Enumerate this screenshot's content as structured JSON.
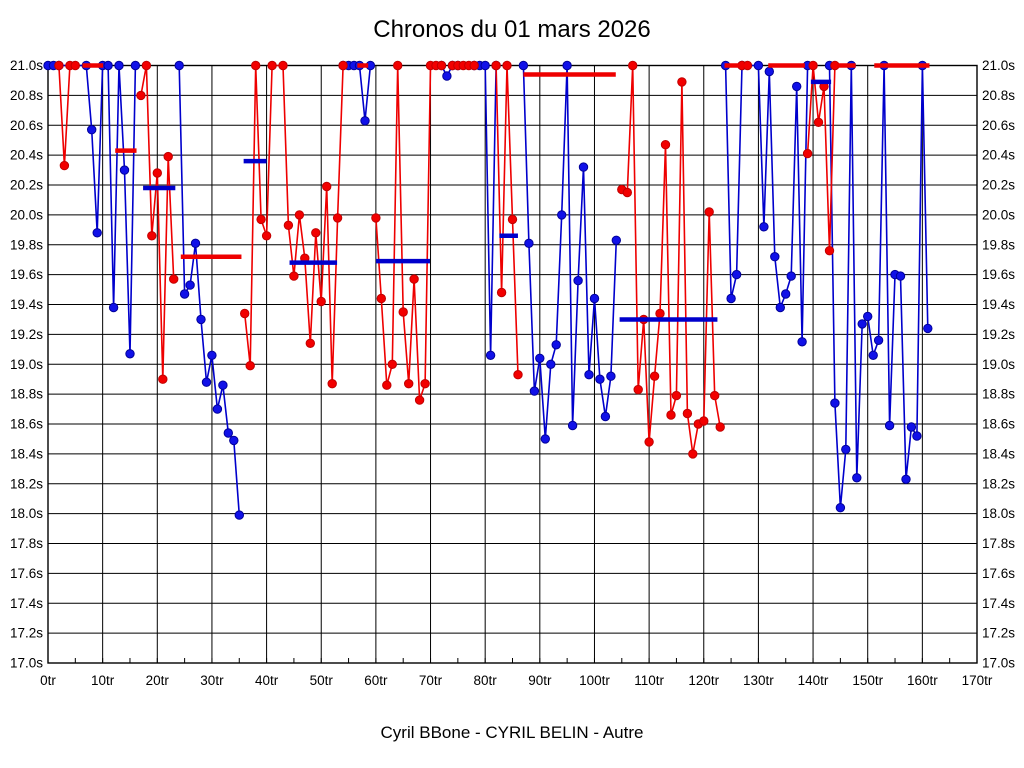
{
  "page": {
    "title": "Chronos du 01 mars 2026",
    "footer": "Cyril BBone - CYRIL BELIN - Autre"
  },
  "chart_data": {
    "type": "line",
    "title": "Chronos du 01 mars 2026",
    "subtitle": "Cyril BBone - CYRIL BELIN - Autre",
    "grid": true,
    "legend_position": "none",
    "x_axis": {
      "min": 0,
      "max": 170,
      "major_step": 10,
      "minor_step": 5,
      "tick_suffix": "tr",
      "tick_labels": [
        "0tr",
        "10tr",
        "20tr",
        "30tr",
        "40tr",
        "50tr",
        "60tr",
        "70tr",
        "80tr",
        "90tr",
        "100tr",
        "110tr",
        "120tr",
        "130tr",
        "140tr",
        "150tr",
        "160tr",
        "170tr"
      ]
    },
    "y_axis": {
      "min": 17.0,
      "max": 21.0,
      "step": 0.2,
      "tick_suffix": "s",
      "labels_both_sides": true,
      "clip_cap": 21.0,
      "tick_labels": [
        "21.0s",
        "20.8s",
        "20.6s",
        "20.4s",
        "20.2s",
        "20.0s",
        "19.8s",
        "19.6s",
        "19.4s",
        "19.2s",
        "19.0s",
        "18.8s",
        "18.6s",
        "18.4s",
        "18.2s",
        "18.0s",
        "17.8s",
        "17.6s",
        "17.4s",
        "17.2s",
        "17.0s"
      ]
    },
    "colors": {
      "blue_line": "#0000cc",
      "blue_fill": "#1111e8",
      "blue_edge": "#000099",
      "red_line": "#ee0000",
      "red_fill": "#f20000",
      "red_edge": "#c00000",
      "grid": "#000000"
    },
    "series": [
      {
        "name": "blue",
        "color": "#0000cc",
        "runs": [
          [
            [
              0,
              21.0
            ],
            [
              1,
              21.0
            ],
            [
              2,
              21.0
            ],
            [
              7,
              21.0
            ],
            [
              8,
              20.57
            ],
            [
              9,
              19.88
            ],
            [
              10,
              21.0
            ],
            [
              11,
              21.0
            ],
            [
              12,
              19.38
            ],
            [
              13,
              21.0
            ],
            [
              14,
              20.3
            ],
            [
              15,
              19.07
            ],
            [
              16,
              21.0
            ]
          ],
          [
            [
              24,
              21.0
            ],
            [
              25,
              19.47
            ],
            [
              26,
              19.53
            ],
            [
              27,
              19.81
            ],
            [
              28,
              19.3
            ],
            [
              29,
              18.88
            ],
            [
              30,
              19.06
            ],
            [
              31,
              18.7
            ],
            [
              32,
              18.86
            ],
            [
              33,
              18.54
            ],
            [
              34,
              18.49
            ],
            [
              35,
              17.99
            ]
          ],
          [
            [
              54,
              21.0
            ],
            [
              55,
              21.0
            ],
            [
              56,
              21.0
            ],
            [
              57,
              21.0
            ],
            [
              58,
              20.63
            ],
            [
              59,
              21.0
            ]
          ],
          [
            [
              72,
              21.0
            ],
            [
              73,
              20.93
            ],
            [
              74,
              21.0
            ],
            [
              75,
              21.0
            ]
          ],
          [
            [
              78,
              21.0
            ],
            [
              79,
              21.0
            ],
            [
              80,
              21.0
            ],
            [
              81,
              19.06
            ],
            [
              82,
              21.0
            ]
          ],
          [
            [
              87,
              21.0
            ],
            [
              88,
              19.81
            ],
            [
              89,
              18.82
            ],
            [
              90,
              19.04
            ],
            [
              91,
              18.5
            ],
            [
              92,
              19.0
            ],
            [
              93,
              19.13
            ],
            [
              94,
              20.0
            ],
            [
              95,
              21.0
            ],
            [
              96,
              18.59
            ],
            [
              97,
              19.56
            ],
            [
              98,
              20.32
            ],
            [
              99,
              18.93
            ],
            [
              100,
              19.44
            ],
            [
              101,
              18.9
            ],
            [
              102,
              18.65
            ],
            [
              103,
              18.92
            ],
            [
              104,
              19.83
            ]
          ],
          [
            [
              124,
              21.0
            ],
            [
              125,
              19.44
            ],
            [
              126,
              19.6
            ],
            [
              127,
              21.0
            ],
            [
              130,
              21.0
            ],
            [
              131,
              19.92
            ],
            [
              132,
              20.96
            ],
            [
              133,
              19.72
            ],
            [
              134,
              19.38
            ],
            [
              135,
              19.47
            ],
            [
              136,
              19.59
            ],
            [
              137,
              20.86
            ],
            [
              138,
              19.15
            ],
            [
              139,
              21.0
            ]
          ],
          [
            [
              143,
              21.0
            ],
            [
              144,
              18.74
            ],
            [
              145,
              18.04
            ],
            [
              146,
              18.43
            ],
            [
              147,
              21.0
            ],
            [
              148,
              18.24
            ],
            [
              149,
              19.27
            ],
            [
              150,
              19.32
            ],
            [
              151,
              19.06
            ],
            [
              152,
              19.16
            ],
            [
              153,
              21.0
            ],
            [
              154,
              18.59
            ],
            [
              155,
              19.6
            ],
            [
              156,
              19.59
            ],
            [
              157,
              18.23
            ],
            [
              158,
              18.58
            ],
            [
              159,
              18.52
            ],
            [
              160,
              21.0
            ],
            [
              161,
              19.24
            ]
          ]
        ]
      },
      {
        "name": "red",
        "color": "#ee0000",
        "runs": [
          [
            [
              2,
              21.0
            ],
            [
              3,
              20.33
            ],
            [
              4,
              21.0
            ],
            [
              5,
              21.0
            ]
          ],
          [
            [
              17,
              20.8
            ],
            [
              18,
              21.0
            ],
            [
              19,
              19.86
            ],
            [
              20,
              20.28
            ],
            [
              21,
              18.9
            ],
            [
              22,
              20.39
            ],
            [
              23,
              19.57
            ]
          ],
          [
            [
              36,
              19.34
            ],
            [
              37,
              18.99
            ],
            [
              38,
              21.0
            ],
            [
              39,
              19.97
            ],
            [
              40,
              19.86
            ],
            [
              41,
              21.0
            ],
            [
              43,
              21.0
            ],
            [
              44,
              19.93
            ],
            [
              45,
              19.59
            ],
            [
              46,
              20.0
            ],
            [
              47,
              19.71
            ],
            [
              48,
              19.14
            ],
            [
              49,
              19.88
            ],
            [
              50,
              19.42
            ],
            [
              51,
              20.19
            ],
            [
              52,
              18.87
            ],
            [
              53,
              19.98
            ],
            [
              54,
              21.0
            ]
          ],
          [
            [
              60,
              19.98
            ],
            [
              61,
              19.44
            ],
            [
              62,
              18.86
            ],
            [
              63,
              19.0
            ],
            [
              64,
              21.0
            ],
            [
              65,
              19.35
            ],
            [
              66,
              18.87
            ],
            [
              67,
              19.57
            ],
            [
              68,
              18.76
            ],
            [
              69,
              18.87
            ],
            [
              70,
              21.0
            ],
            [
              71,
              21.0
            ],
            [
              72,
              21.0
            ]
          ],
          [
            [
              74,
              21.0
            ],
            [
              75,
              21.0
            ],
            [
              76,
              21.0
            ],
            [
              77,
              21.0
            ],
            [
              78,
              21.0
            ]
          ],
          [
            [
              82,
              21.0
            ],
            [
              83,
              19.48
            ],
            [
              84,
              21.0
            ],
            [
              85,
              19.97
            ],
            [
              86,
              18.93
            ]
          ],
          [
            [
              105,
              20.17
            ],
            [
              106,
              20.15
            ],
            [
              107,
              21.0
            ],
            [
              108,
              18.83
            ],
            [
              109,
              19.3
            ],
            [
              110,
              18.48
            ],
            [
              111,
              18.92
            ],
            [
              112,
              19.34
            ],
            [
              113,
              20.47
            ],
            [
              114,
              18.66
            ],
            [
              115,
              18.79
            ],
            [
              116,
              20.89
            ],
            [
              117,
              18.67
            ],
            [
              118,
              18.4
            ],
            [
              119,
              18.6
            ],
            [
              120,
              18.62
            ],
            [
              121,
              20.02
            ],
            [
              122,
              18.79
            ],
            [
              123,
              18.58
            ]
          ],
          [
            [
              127,
              21.0
            ],
            [
              128,
              21.0
            ]
          ],
          [
            [
              139,
              20.41
            ],
            [
              140,
              21.0
            ],
            [
              141,
              20.62
            ],
            [
              142,
              20.86
            ],
            [
              143,
              19.76
            ],
            [
              144,
              21.0
            ]
          ]
        ]
      }
    ],
    "average_segments": [
      {
        "series": "red",
        "x1": 6.3,
        "x2": 10.1,
        "y": 21.0
      },
      {
        "series": "red",
        "x1": 12.3,
        "x2": 16.2,
        "y": 20.43
      },
      {
        "series": "blue",
        "x1": 17.4,
        "x2": 23.3,
        "y": 20.18
      },
      {
        "series": "red",
        "x1": 24.3,
        "x2": 35.4,
        "y": 19.72
      },
      {
        "series": "blue",
        "x1": 35.8,
        "x2": 40.0,
        "y": 20.36
      },
      {
        "series": "blue",
        "x1": 44.2,
        "x2": 52.9,
        "y": 19.68
      },
      {
        "series": "red",
        "x1": 56.6,
        "x2": 58.6,
        "y": 21.0
      },
      {
        "series": "blue",
        "x1": 60.0,
        "x2": 69.9,
        "y": 19.69
      },
      {
        "series": "blue",
        "x1": 82.6,
        "x2": 86.0,
        "y": 19.86
      },
      {
        "series": "red",
        "x1": 87.0,
        "x2": 103.9,
        "y": 20.94
      },
      {
        "series": "blue",
        "x1": 104.6,
        "x2": 122.5,
        "y": 19.3
      },
      {
        "series": "red",
        "x1": 123.8,
        "x2": 127.4,
        "y": 21.0
      },
      {
        "series": "red",
        "x1": 131.8,
        "x2": 138.5,
        "y": 21.0
      },
      {
        "series": "blue",
        "x1": 139.6,
        "x2": 143.3,
        "y": 20.89
      },
      {
        "series": "red",
        "x1": 144.4,
        "x2": 147.8,
        "y": 21.0
      },
      {
        "series": "red",
        "x1": 151.2,
        "x2": 161.3,
        "y": 21.0
      }
    ]
  }
}
